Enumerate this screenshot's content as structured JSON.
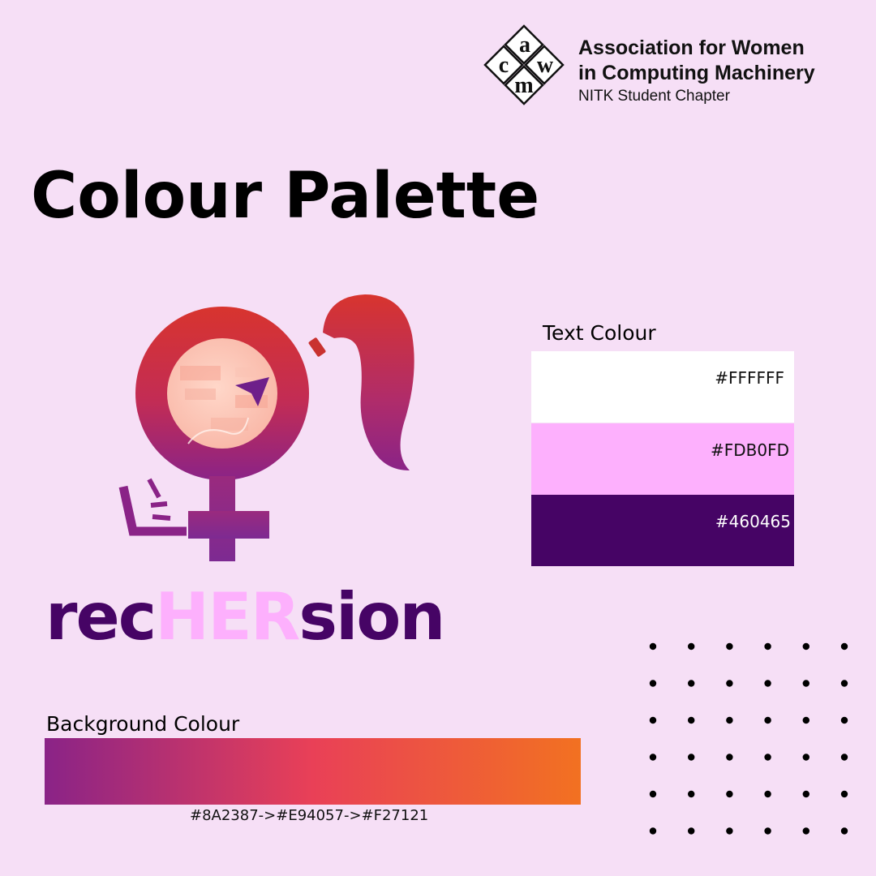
{
  "header": {
    "org_line1": "Association for Women",
    "org_line2": "in Computing Machinery",
    "org_line3": "NITK Student Chapter",
    "logo_letters": [
      "a",
      "c",
      "w",
      "m"
    ]
  },
  "title": "Colour Palette",
  "wordmark": {
    "part1": "rec",
    "part2": "HER",
    "part3": "sion"
  },
  "text_colour": {
    "label": "Text Colour",
    "swatches": [
      {
        "code": "#FFFFFF",
        "color": "#FFFFFF"
      },
      {
        "code": "#FDB0FD",
        "color": "#FDB0FD"
      },
      {
        "code": "#460465",
        "color": "#460465"
      }
    ]
  },
  "background_colour": {
    "label": "Background Colour",
    "caption": "#8A2387->#E94057->#F27121",
    "stops": [
      "#8A2387",
      "#E94057",
      "#F27121"
    ]
  },
  "colors": {
    "page_background": "#F6DFF6",
    "emblem_red": "#D8342E",
    "emblem_purple": "#8A2387"
  }
}
